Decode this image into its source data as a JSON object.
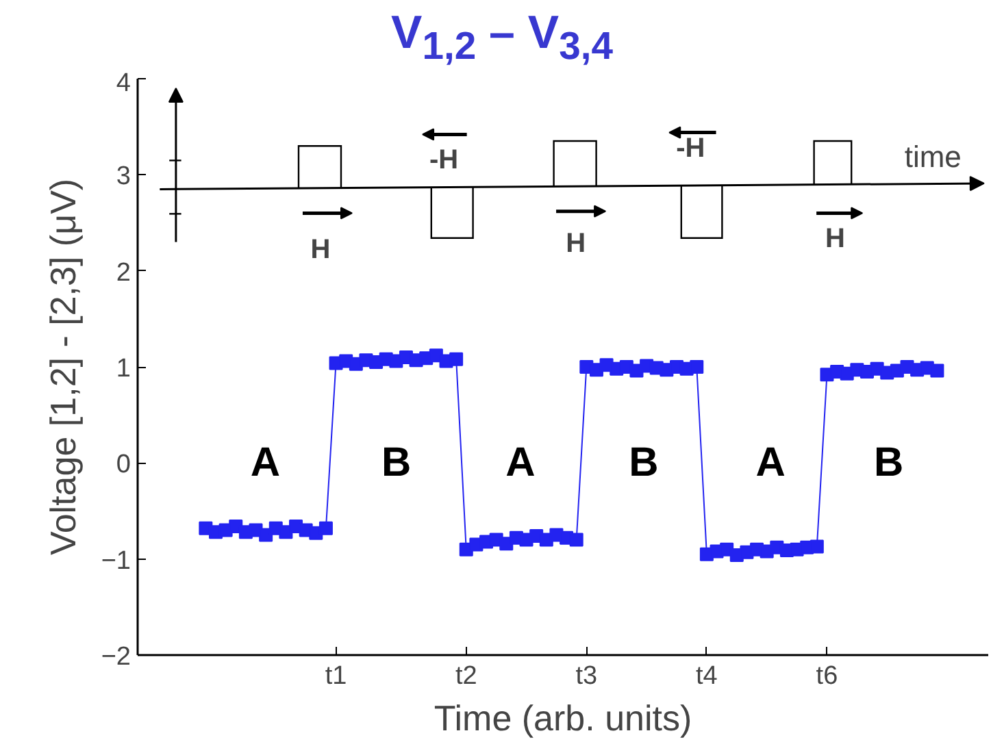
{
  "chart_data": {
    "type": "line",
    "title": "V$_{1,2}$ – V$_{3,4}$",
    "xlabel": "Time (arb. units)",
    "ylabel": "Voltage [1,2] - [2,3] (μV)",
    "categories": [
      null,
      null,
      null,
      null,
      null,
      null,
      null,
      null,
      null,
      null,
      null,
      null,
      null,
      "t1",
      null,
      null,
      null,
      null,
      null,
      null,
      null,
      null,
      null,
      null,
      null,
      null,
      "t2",
      null,
      null,
      null,
      null,
      null,
      null,
      null,
      null,
      null,
      null,
      null,
      "t3",
      null,
      null,
      null,
      null,
      null,
      null,
      null,
      null,
      null,
      null,
      null,
      "t4",
      null,
      null,
      null,
      null,
      null,
      null,
      null,
      null,
      null,
      null,
      null,
      "t6",
      null,
      null,
      null,
      null,
      null,
      null,
      null,
      null,
      null,
      null,
      null
    ],
    "series": [
      {
        "color": "#2323f0",
        "values": [
          -0.68,
          -0.72,
          -0.7,
          -0.66,
          -0.72,
          -0.7,
          -0.75,
          -0.68,
          -0.72,
          -0.66,
          -0.7,
          -0.73,
          -0.68,
          1.04,
          1.06,
          1.03,
          1.07,
          1.05,
          1.08,
          1.06,
          1.1,
          1.07,
          1.09,
          1.12,
          1.06,
          1.08,
          -0.9,
          -0.85,
          -0.82,
          -0.8,
          -0.84,
          -0.78,
          -0.8,
          -0.76,
          -0.8,
          -0.75,
          -0.78,
          -0.8,
          1.0,
          0.97,
          1.02,
          0.98,
          1.0,
          0.96,
          1.01,
          0.99,
          0.97,
          1.0,
          0.98,
          1.0,
          -0.95,
          -0.92,
          -0.9,
          -0.96,
          -0.93,
          -0.9,
          -0.92,
          -0.88,
          -0.91,
          -0.9,
          -0.88,
          -0.87,
          0.92,
          0.95,
          0.93,
          0.97,
          0.95,
          0.98,
          0.94,
          0.96,
          1.0,
          0.97,
          0.99,
          0.96
        ]
      }
    ],
    "ylim": [
      -2,
      4
    ],
    "yticks": [
      -2,
      -1,
      0,
      1,
      2,
      3,
      4
    ],
    "marker": "square",
    "line_style": "solid",
    "grid": false,
    "annotations": [
      "A",
      "B",
      "A",
      "B",
      "A",
      "B",
      "H",
      "-H",
      "H",
      "-H",
      "H",
      "time"
    ]
  }
}
